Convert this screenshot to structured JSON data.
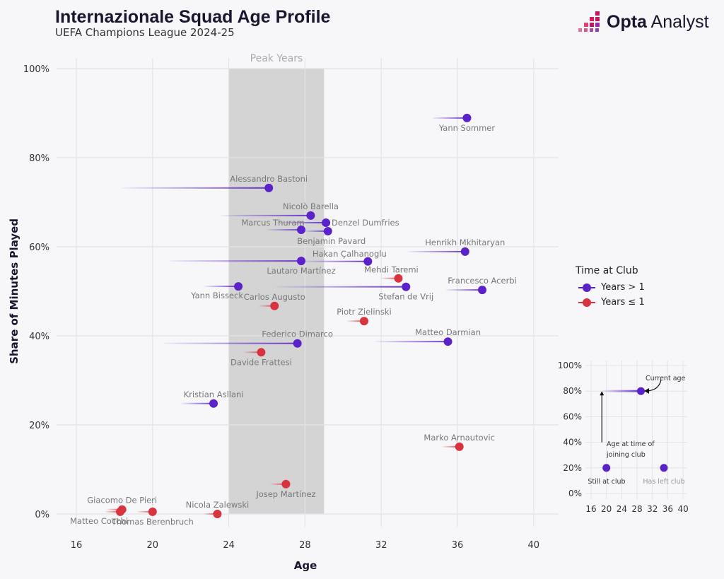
{
  "header": {
    "title": "Internazionale Squad Age Profile",
    "subtitle": "UEFA Champions League 2024-25",
    "logo_text_bold": "Opta",
    "logo_text": "Analyst"
  },
  "colors": {
    "years_gt_1": "#5a22c8",
    "years_le_1": "#d8343f",
    "peak_band": "#d4d4d4",
    "background": "#f7f7f9"
  },
  "legend": {
    "title": "Time at Club",
    "items": [
      {
        "label": "Years > 1",
        "group": "gt1"
      },
      {
        "label": "Years ≤ 1",
        "group": "le1"
      }
    ],
    "placement": "right"
  },
  "chart_data": {
    "type": "scatter",
    "xlabel": "Age",
    "ylabel": "Share of Minutes Played",
    "xlim": [
      14.8,
      41
    ],
    "ylim": [
      -2,
      101
    ],
    "x_ticks": [
      "16",
      "20",
      "24",
      "28",
      "32",
      "36",
      "40"
    ],
    "y_ticks": [
      "0%",
      "20%",
      "40%",
      "60%",
      "80%",
      "100%"
    ],
    "grid": true,
    "band": {
      "label": "Peak Years",
      "from": 24,
      "to": 29
    },
    "points": [
      {
        "name": "Yann Sommer",
        "age": 36.5,
        "join_age": 34.7,
        "share": 88.9,
        "group": "gt1",
        "label_pos": "below"
      },
      {
        "name": "Alessandro Bastoni",
        "age": 26.1,
        "join_age": 18.4,
        "share": 73.2,
        "group": "gt1",
        "label_pos": "above"
      },
      {
        "name": "Nicolò Barella",
        "age": 28.3,
        "join_age": 23.6,
        "share": 67.0,
        "group": "gt1",
        "label_pos": "above"
      },
      {
        "name": "Denzel Dumfries",
        "age": 29.1,
        "join_age": 26.5,
        "share": 65.4,
        "group": "gt1",
        "label_pos": "right"
      },
      {
        "name": "Marcus Thuram",
        "age": 27.8,
        "join_age": 26.0,
        "share": 63.8,
        "group": "gt1",
        "label_pos": "aboveleft"
      },
      {
        "name": "Benjamin Pavard",
        "age": 29.2,
        "join_age": 28.0,
        "share": 63.5,
        "group": "gt1",
        "label_pos": "below"
      },
      {
        "name": "Henrikh Mkhitaryan",
        "age": 36.4,
        "join_age": 33.4,
        "share": 58.9,
        "group": "gt1",
        "label_pos": "above"
      },
      {
        "name": "Hakan Çalhanoglu",
        "age": 31.3,
        "join_age": 27.8,
        "share": 56.7,
        "group": "gt1",
        "label_pos": "aboveleft"
      },
      {
        "name": "Lautaro Martínez",
        "age": 27.8,
        "join_age": 20.9,
        "share": 56.8,
        "group": "gt1",
        "label_pos": "below"
      },
      {
        "name": "Mehdi Taremi",
        "age": 32.9,
        "join_age": 32.0,
        "share": 52.9,
        "group": "le1",
        "label_pos": "aboveleft"
      },
      {
        "name": "Stefan de Vrij",
        "age": 33.3,
        "join_age": 26.5,
        "share": 51.0,
        "group": "gt1",
        "label_pos": "below"
      },
      {
        "name": "Francesco Acerbi",
        "age": 37.3,
        "join_age": 35.4,
        "share": 50.3,
        "group": "gt1",
        "label_pos": "above"
      },
      {
        "name": "Yann Bisseck",
        "age": 24.5,
        "join_age": 22.7,
        "share": 51.1,
        "group": "gt1",
        "label_pos": "belowleft"
      },
      {
        "name": "Carlos Augusto",
        "age": 26.4,
        "join_age": 25.6,
        "share": 46.7,
        "group": "le1",
        "label_pos": "above"
      },
      {
        "name": "Piotr Zielinski",
        "age": 31.1,
        "join_age": 30.2,
        "share": 43.3,
        "group": "le1",
        "label_pos": "above"
      },
      {
        "name": "Federico Dimarco",
        "age": 27.6,
        "join_age": 20.6,
        "share": 38.3,
        "group": "gt1",
        "label_pos": "above"
      },
      {
        "name": "Matteo Darmian",
        "age": 35.5,
        "join_age": 31.7,
        "share": 38.7,
        "group": "gt1",
        "label_pos": "above"
      },
      {
        "name": "Davide Frattesi",
        "age": 25.7,
        "join_age": 24.8,
        "share": 36.3,
        "group": "le1",
        "label_pos": "below"
      },
      {
        "name": "Kristian Asllani",
        "age": 23.2,
        "join_age": 21.5,
        "share": 24.8,
        "group": "gt1",
        "label_pos": "above"
      },
      {
        "name": "Marko Arnautovic",
        "age": 36.1,
        "join_age": 35.2,
        "share": 15.1,
        "group": "le1",
        "label_pos": "above"
      },
      {
        "name": "Josep Martínez",
        "age": 27.0,
        "join_age": 26.2,
        "share": 6.7,
        "group": "le1",
        "label_pos": "below"
      },
      {
        "name": "Giacomo De Pieri",
        "age": 18.4,
        "join_age": 17.6,
        "share": 1.0,
        "group": "le1",
        "label_pos": "above"
      },
      {
        "name": "Matteo Cocchi",
        "age": 18.3,
        "join_age": 17.5,
        "share": 0.5,
        "group": "le1",
        "label_pos": "belowleft"
      },
      {
        "name": "Thomas Berenbruch",
        "age": 20.0,
        "join_age": 19.2,
        "share": 0.5,
        "group": "le1",
        "label_pos": "below"
      },
      {
        "name": "Nicola Zalewski",
        "age": 23.4,
        "join_age": 22.7,
        "share": 0.0,
        "group": "le1",
        "label_pos": "above"
      }
    ]
  },
  "inset": {
    "x_ticks": [
      "16",
      "20",
      "24",
      "28",
      "32",
      "36",
      "40"
    ],
    "y_ticks": [
      "0%",
      "20%",
      "40%",
      "60%",
      "80%",
      "100%"
    ],
    "example": {
      "age": 29,
      "join_age": 19,
      "share": 80
    },
    "current_age_label": "Current age",
    "join_label_line1": "Age at time of",
    "join_label_line2": "joining club",
    "still_label": "Still at club",
    "left_label": "Has left club",
    "still_point": {
      "age": 20,
      "share": 20
    },
    "left_point": {
      "age": 35,
      "share": 20
    }
  }
}
